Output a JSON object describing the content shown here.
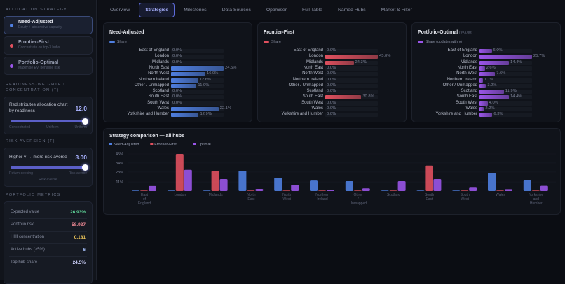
{
  "sidebar": {
    "allocation_title": "ALLOCATION STRATEGY",
    "strategies": [
      {
        "name": "Need-Adjusted",
        "subtitle": "Equity + absorptive capacity",
        "color": "#4f7fe0",
        "active": true
      },
      {
        "name": "Frontier-First",
        "subtitle": "Concentrate on top-3 hubs",
        "color": "#e0505e",
        "active": false
      },
      {
        "name": "Portfolio-Optimal",
        "subtitle": "Maximise EV, penalise risk",
        "color": "#9a55e8",
        "active": false
      }
    ],
    "readiness": {
      "title": "READINESS-WEIGHTED CONCENTRATION (T)",
      "label": "Redistributes allocation chart by readiness",
      "value": "12.0",
      "level": 1.0,
      "left": "Concentrated",
      "mid": "Uniform",
      "right": "Uniform"
    },
    "risk": {
      "title": "RISK AVERSION (Γ)",
      "label": "Higher γ → more risk-averse",
      "value": "3.00",
      "level": 1.0,
      "left": "Return-seeking",
      "right": "Risk-averse",
      "below": "Risk-averse"
    },
    "metrics_title": "PORTFOLIO METRICS",
    "metrics": [
      {
        "label": "Expected value",
        "value": "26.93%",
        "color": "#5fd69a"
      },
      {
        "label": "Portfolio risk",
        "value": "58.937",
        "color": "#ef8a95"
      },
      {
        "label": "HHI concentration",
        "value": "0.181",
        "color": "#f0c85a"
      },
      {
        "label": "Active hubs (>5%)",
        "value": "6",
        "color": "#a9c4ff"
      },
      {
        "label": "Top hub share",
        "value": "24.5%",
        "color": "#d0d4ff"
      }
    ]
  },
  "tabs": [
    {
      "label": "Overview",
      "active": false
    },
    {
      "label": "Strategies",
      "active": true
    },
    {
      "label": "Milestones",
      "active": false
    },
    {
      "label": "Data Sources",
      "active": false
    },
    {
      "label": "Optimiser",
      "active": false
    },
    {
      "label": "Full Table",
      "active": false
    },
    {
      "label": "Named Hubs",
      "active": false
    },
    {
      "label": "Market & Filter",
      "active": false
    }
  ],
  "hubs": [
    "East of England",
    "London",
    "Midlands",
    "North East",
    "North West",
    "Northern Ireland",
    "Other / Unmapped",
    "Scotland",
    "South East",
    "South West",
    "Wales",
    "Yorkshire and Humber"
  ],
  "panels": [
    {
      "title": "Need-Adjusted",
      "subtitle": "",
      "legend": "Share",
      "color": "#4f7fe0",
      "values": [
        0,
        0,
        0,
        24.5,
        16.0,
        12.6,
        11.9,
        0,
        0,
        0,
        22.1,
        12.9
      ]
    },
    {
      "title": "Frontier-First",
      "subtitle": "",
      "legend": "Share",
      "color": "#e0505e",
      "values": [
        0,
        45.0,
        24.3,
        0,
        0,
        0,
        0,
        0,
        30.8,
        0,
        0,
        0
      ]
    },
    {
      "title": "Portfolio-Optimal",
      "subtitle": "(γ=3.00)",
      "legend": "Share (updates with γ)",
      "color": "#9a55e8",
      "values": [
        6.0,
        25.7,
        14.4,
        2.6,
        7.6,
        1.7,
        3.2,
        11.9,
        14.4,
        4.0,
        2.2,
        6.3
      ]
    }
  ],
  "chart_data": {
    "type": "bar",
    "title": "Strategy comparison — all hubs",
    "categories": [
      [
        "East",
        "of",
        "England"
      ],
      [
        "London"
      ],
      [
        "Midlands"
      ],
      [
        "North",
        "East"
      ],
      [
        "North",
        "West"
      ],
      [
        "Northern",
        "Ireland"
      ],
      [
        "Other",
        "/",
        "Unmapped"
      ],
      [
        "Scotland"
      ],
      [
        "South",
        "East"
      ],
      [
        "South",
        "West"
      ],
      [
        "Wales"
      ],
      [
        "Yorkshire",
        "and",
        "Humber"
      ]
    ],
    "yticks": [
      "45%",
      "34%",
      "23%",
      "11%"
    ],
    "ylim": [
      0,
      45
    ],
    "legend": "top-left",
    "series": [
      {
        "name": "Need-Adjusted",
        "color": "#4f7fe0",
        "values": [
          0,
          0,
          0,
          24.5,
          16.0,
          12.6,
          11.9,
          0,
          0,
          0,
          22.1,
          12.9
        ]
      },
      {
        "name": "Frontier-First",
        "color": "#e0505e",
        "values": [
          0,
          45.0,
          24.3,
          0,
          0,
          0,
          0,
          0,
          30.8,
          0,
          0,
          0
        ]
      },
      {
        "name": "Optimal",
        "color": "#9a55e8",
        "values": [
          6.0,
          25.7,
          14.4,
          2.6,
          7.6,
          1.7,
          3.2,
          11.9,
          14.4,
          4.0,
          2.2,
          6.3
        ]
      }
    ]
  }
}
